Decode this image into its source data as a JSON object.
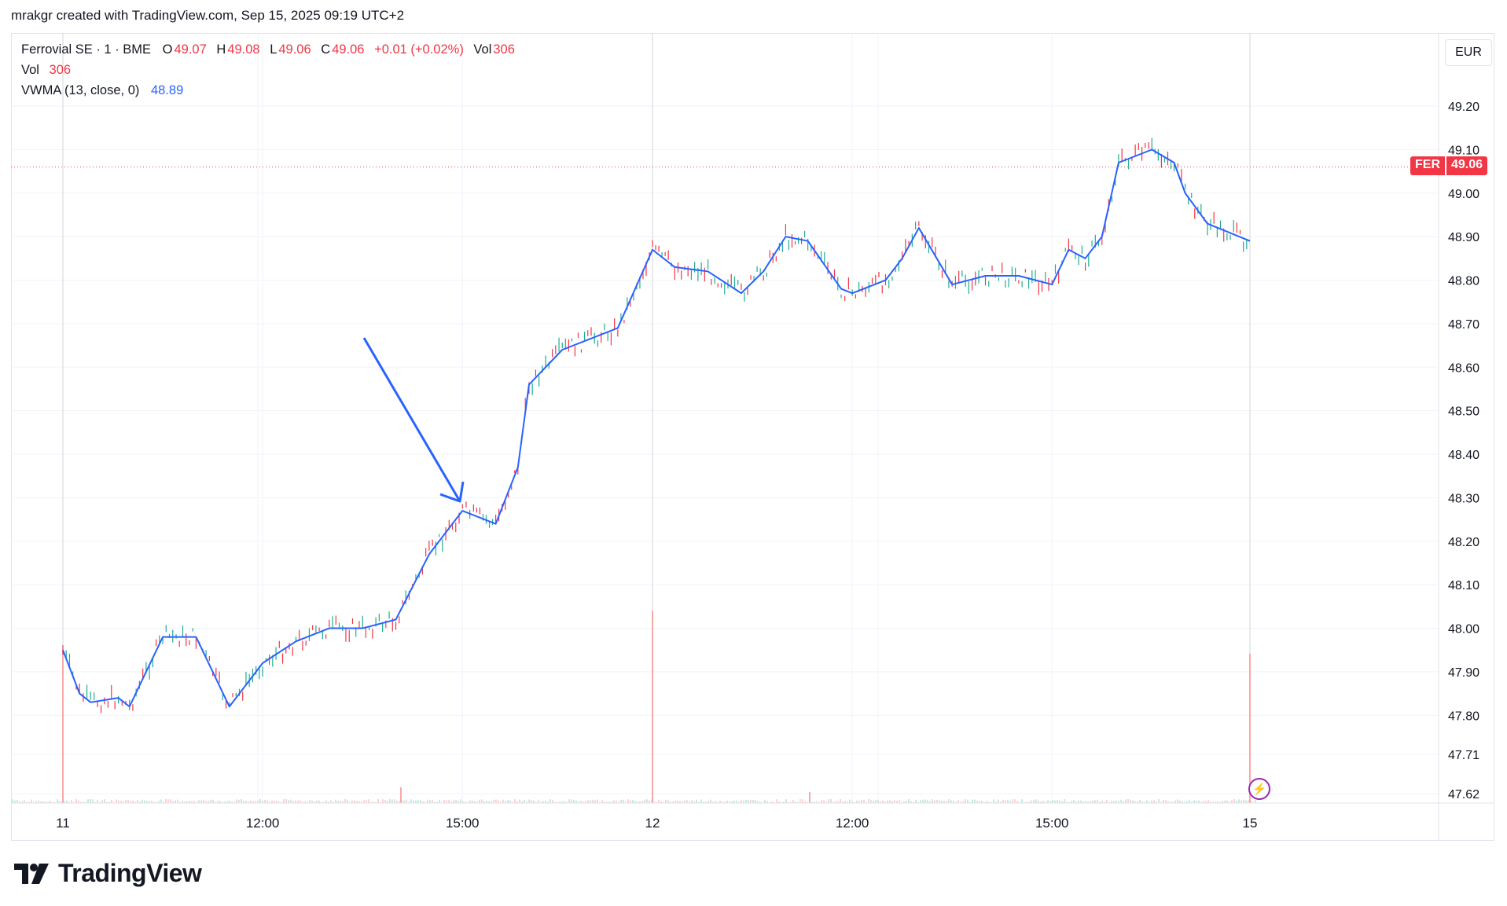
{
  "header": {
    "credit": "mrakgr created with TradingView.com, Sep 15, 2025 09:19 UTC+2"
  },
  "legend": {
    "symbol": "Ferrovial SE · 1 · BME",
    "o_label": "O",
    "o_value": "49.07",
    "h_label": "H",
    "h_value": "49.08",
    "l_label": "L",
    "l_value": "49.06",
    "c_label": "C",
    "c_value": "49.06",
    "change": "+0.01 (+0.02%)",
    "vol_label": "Vol",
    "vol_value": "306",
    "vol_row_label": "Vol",
    "vol_row_value": "306",
    "vwma_label": "VWMA (13, close, 0)",
    "vwma_value": "48.89"
  },
  "currency": "EUR",
  "price_tag": {
    "symbol": "FER",
    "value": "49.06"
  },
  "footer": {
    "brand": "TradingView"
  },
  "colors": {
    "up": "#22ab94",
    "down": "#f23645",
    "vwma": "#2962ff",
    "grid": "#f0f3fa",
    "session": "#d1d4dc"
  },
  "chart_data": {
    "type": "line",
    "title": "Ferrovial SE · 1 · BME",
    "ylabel": "EUR",
    "ylim": [
      47.6,
      49.25
    ],
    "y_ticks": [
      "49.20",
      "49.10",
      "49.00",
      "48.90",
      "48.80",
      "48.70",
      "48.60",
      "48.50",
      "48.40",
      "48.30",
      "48.20",
      "48.10",
      "48.00",
      "47.90",
      "47.80",
      "47.71",
      "47.62"
    ],
    "x_ticks": [
      "11",
      "12:00",
      "15:00",
      "12",
      "12:00",
      "15:00",
      "15"
    ],
    "last_price": 49.06,
    "series": [
      {
        "name": "VWMA (13, close, 0)",
        "x": [
          "11 09:00",
          "11 09:15",
          "11 09:25",
          "11 09:50",
          "11 10:00",
          "11 10:30",
          "11 11:00",
          "11 11:30",
          "11 12:00",
          "11 12:30",
          "11 13:00",
          "11 13:30",
          "11 14:00",
          "11 14:30",
          "11 15:00",
          "11 15:10",
          "11 15:30",
          "11 15:50",
          "11 16:00",
          "11 16:30",
          "11 16:50",
          "11 17:20",
          "12 09:00",
          "12 09:20",
          "12 09:50",
          "12 10:20",
          "12 10:40",
          "12 11:00",
          "12 11:20",
          "12 11:50",
          "12 12:00",
          "12 12:30",
          "12 12:45",
          "12 13:00",
          "12 13:30",
          "12 14:00",
          "12 14:30",
          "12 15:00",
          "12 15:15",
          "12 15:30",
          "12 15:45",
          "12 16:00",
          "12 16:30",
          "12 16:50",
          "12 17:00",
          "12 17:20",
          "15 09:00"
        ],
        "values": [
          47.95,
          47.85,
          47.83,
          47.84,
          47.82,
          47.98,
          47.98,
          47.82,
          47.92,
          47.97,
          48.0,
          48.0,
          48.02,
          48.17,
          48.27,
          48.26,
          48.24,
          48.37,
          48.56,
          48.64,
          48.66,
          48.69,
          48.87,
          48.83,
          48.82,
          48.77,
          48.82,
          48.9,
          48.89,
          48.78,
          48.77,
          48.8,
          48.85,
          48.92,
          48.79,
          48.81,
          48.81,
          48.79,
          48.87,
          48.85,
          48.9,
          49.07,
          49.1,
          49.07,
          49.0,
          48.93,
          48.89
        ]
      }
    ]
  }
}
